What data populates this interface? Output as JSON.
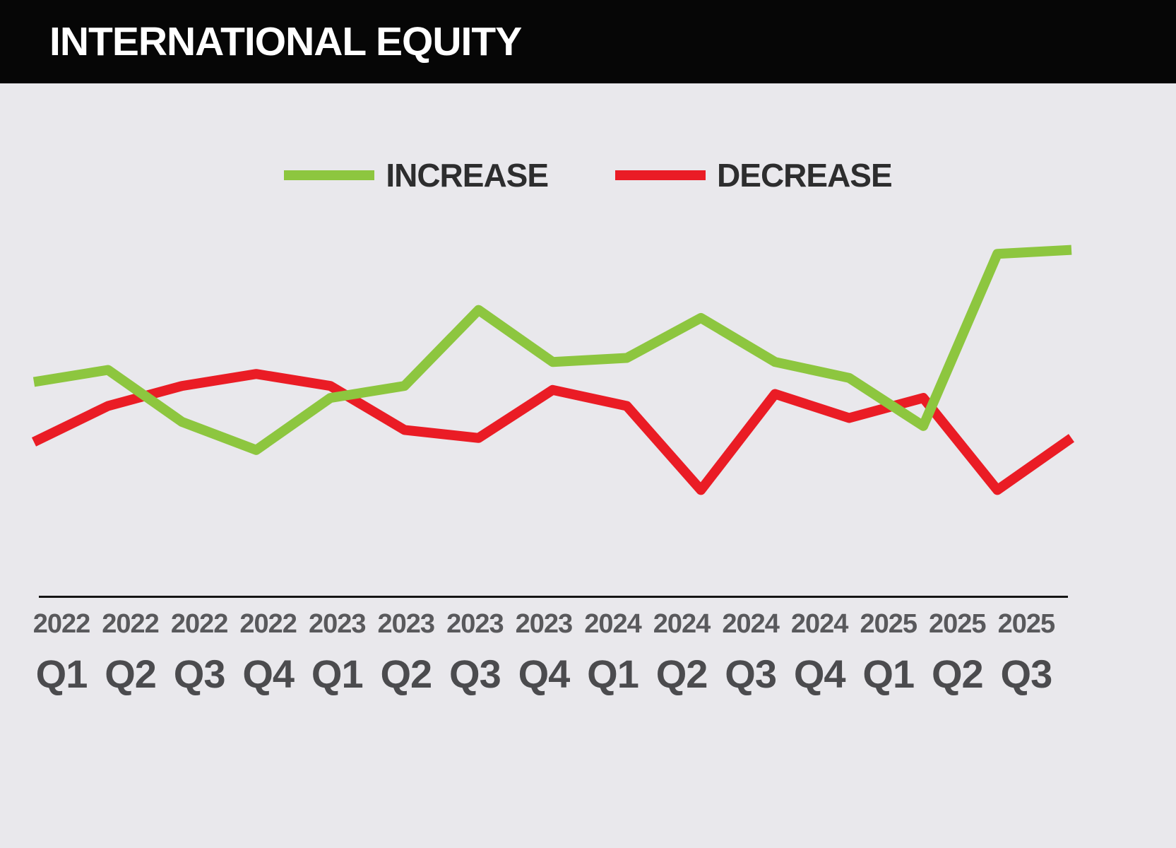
{
  "header": {
    "title": "INTERNATIONAL EQUITY"
  },
  "legend": {
    "items": [
      {
        "label": "INCREASE",
        "color": "#8dc63f"
      },
      {
        "label": "DECREASE",
        "color": "#ea1c25"
      }
    ]
  },
  "chart_data": {
    "type": "line",
    "title": "INTERNATIONAL EQUITY",
    "categories": [
      {
        "year": "2022",
        "quarter": "Q1"
      },
      {
        "year": "2022",
        "quarter": "Q2"
      },
      {
        "year": "2022",
        "quarter": "Q3"
      },
      {
        "year": "2022",
        "quarter": "Q4"
      },
      {
        "year": "2023",
        "quarter": "Q1"
      },
      {
        "year": "2023",
        "quarter": "Q2"
      },
      {
        "year": "2023",
        "quarter": "Q3"
      },
      {
        "year": "2023",
        "quarter": "Q4"
      },
      {
        "year": "2024",
        "quarter": "Q1"
      },
      {
        "year": "2024",
        "quarter": "Q2"
      },
      {
        "year": "2024",
        "quarter": "Q3"
      },
      {
        "year": "2024",
        "quarter": "Q4"
      },
      {
        "year": "2025",
        "quarter": "Q1"
      },
      {
        "year": "2025",
        "quarter": "Q2"
      },
      {
        "year": "2025",
        "quarter": "Q3"
      }
    ],
    "series": [
      {
        "name": "INCREASE",
        "color": "#8dc63f",
        "values": [
          47,
          50,
          37,
          30,
          43,
          46,
          65,
          52,
          53,
          63,
          52,
          48,
          36,
          79,
          80
        ]
      },
      {
        "name": "DECREASE",
        "color": "#ea1c25",
        "values": [
          32,
          41,
          46,
          49,
          46,
          35,
          33,
          45,
          41,
          20,
          44,
          38,
          43,
          20,
          33
        ]
      }
    ],
    "xlabel": "",
    "ylabel": "",
    "ylim": [
      10,
      90
    ],
    "grid": false,
    "legend_position": "top-center"
  }
}
